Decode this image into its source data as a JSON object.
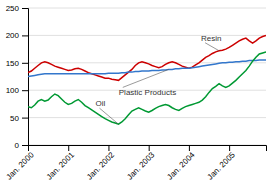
{
  "chart_data": {
    "type": "line",
    "categories": [
      "Jan. 2000",
      null,
      null,
      null,
      null,
      null,
      null,
      null,
      null,
      null,
      null,
      null,
      "Jan. 2001",
      null,
      null,
      null,
      null,
      null,
      null,
      null,
      null,
      null,
      null,
      null,
      "Jan. 2002",
      null,
      null,
      null,
      null,
      null,
      null,
      null,
      null,
      null,
      null,
      null,
      "Jan. 2003",
      null,
      null,
      null,
      null,
      null,
      null,
      null,
      null,
      null,
      null,
      null,
      "Jan. 2004",
      null,
      null,
      null,
      null,
      null,
      null,
      null,
      null,
      null,
      null,
      null,
      "Jan. 2005",
      null,
      null,
      null,
      null,
      null,
      null,
      null,
      null,
      null,
      null,
      null
    ],
    "series": [
      {
        "name": "Resin",
        "color": "#cc0000",
        "values": [
          132,
          135,
          140,
          145,
          150,
          152,
          150,
          147,
          144,
          142,
          140,
          138,
          136,
          137,
          139,
          140,
          138,
          135,
          132,
          130,
          128,
          126,
          124,
          122,
          122,
          120,
          119,
          118,
          123,
          128,
          133,
          138,
          145,
          150,
          152,
          150,
          148,
          145,
          143,
          141,
          143,
          147,
          150,
          152,
          150,
          147,
          144,
          142,
          140,
          142,
          146,
          150,
          155,
          160,
          163,
          167,
          170,
          172,
          173,
          175,
          178,
          182,
          186,
          190,
          193,
          195,
          190,
          186,
          190,
          195,
          198,
          200
        ]
      },
      {
        "name": "Plastic Products",
        "color": "#3377cc",
        "values": [
          125,
          126,
          127,
          128,
          129,
          130,
          130,
          130,
          130,
          130,
          130,
          130,
          130,
          130,
          130,
          130,
          130,
          130,
          130,
          130,
          130,
          130,
          130,
          130,
          131,
          131,
          131,
          131,
          132,
          132,
          133,
          133,
          134,
          134,
          135,
          135,
          135,
          136,
          136,
          136,
          137,
          137,
          138,
          138,
          139,
          139,
          140,
          140,
          140,
          141,
          142,
          143,
          144,
          145,
          146,
          147,
          148,
          149,
          150,
          150,
          151,
          151,
          152,
          152,
          153,
          153,
          154,
          154,
          154,
          155,
          155,
          155
        ]
      },
      {
        "name": "Oil",
        "color": "#009933",
        "values": [
          70,
          68,
          73,
          80,
          83,
          80,
          82,
          88,
          93,
          90,
          84,
          78,
          74,
          76,
          80,
          83,
          78,
          72,
          68,
          64,
          60,
          56,
          52,
          48,
          45,
          42,
          40,
          38,
          42,
          48,
          55,
          62,
          65,
          68,
          65,
          62,
          60,
          63,
          67,
          70,
          72,
          74,
          72,
          68,
          65,
          63,
          67,
          70,
          72,
          74,
          76,
          78,
          82,
          88,
          96,
          103,
          107,
          112,
          108,
          105,
          108,
          113,
          118,
          124,
          130,
          136,
          144,
          153,
          160,
          166,
          168,
          170
        ]
      }
    ],
    "ylim": [
      0,
      250
    ],
    "yticks": [
      0,
      50,
      100,
      150,
      200,
      250
    ],
    "grid": true
  }
}
